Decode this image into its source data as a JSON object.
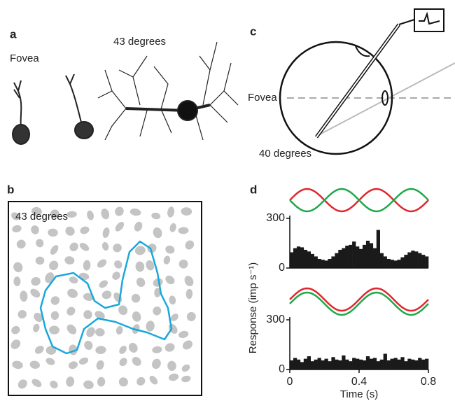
{
  "panels": {
    "a": {
      "label": "a",
      "fovea": "Fovea",
      "periphery": "43 degrees"
    },
    "b": {
      "label": "b",
      "caption": "43 degrees"
    },
    "c": {
      "label": "c",
      "fovea": "Fovea",
      "periphery": "40 degrees"
    },
    "d": {
      "label": "d",
      "ylabel": "Response (imp s⁻¹)",
      "xlabel": "Time (s)"
    }
  },
  "chart_data": [
    {
      "type": "histogram",
      "color": "#1a1a1a",
      "xlim": [
        0,
        0.8
      ],
      "ylim": [
        0,
        300
      ],
      "yticks": [
        0,
        300
      ],
      "bins": [
        0,
        0.02,
        0.04,
        0.06,
        0.08,
        0.1,
        0.12,
        0.14,
        0.16,
        0.18,
        0.2,
        0.22,
        0.24,
        0.26,
        0.28,
        0.3,
        0.32,
        0.34,
        0.36,
        0.38,
        0.4,
        0.42,
        0.44,
        0.46,
        0.48,
        0.5,
        0.52,
        0.54,
        0.56,
        0.58,
        0.6,
        0.62,
        0.64,
        0.66,
        0.68,
        0.7,
        0.72,
        0.74,
        0.76,
        0.78,
        0.8
      ],
      "values": [
        95,
        120,
        130,
        125,
        110,
        100,
        85,
        70,
        55,
        50,
        45,
        55,
        70,
        90,
        110,
        120,
        135,
        140,
        160,
        130,
        115,
        140,
        165,
        150,
        120,
        230,
        90,
        70,
        55,
        50,
        45,
        50,
        65,
        80,
        95,
        105,
        100,
        90,
        80,
        70
      ]
    },
    {
      "type": "histogram",
      "color": "#1a1a1a",
      "xlim": [
        0,
        0.8
      ],
      "ylim": [
        0,
        300
      ],
      "yticks": [
        0,
        300
      ],
      "xticks": [
        0,
        0.4,
        0.8
      ],
      "bins": [
        0,
        0.02,
        0.04,
        0.06,
        0.08,
        0.1,
        0.12,
        0.14,
        0.16,
        0.18,
        0.2,
        0.22,
        0.24,
        0.26,
        0.28,
        0.3,
        0.32,
        0.34,
        0.36,
        0.38,
        0.4,
        0.42,
        0.44,
        0.46,
        0.48,
        0.5,
        0.52,
        0.54,
        0.56,
        0.58,
        0.6,
        0.62,
        0.64,
        0.66,
        0.68,
        0.7,
        0.72,
        0.74,
        0.76,
        0.78,
        0.8
      ],
      "values": [
        55,
        70,
        60,
        45,
        65,
        80,
        50,
        60,
        70,
        55,
        65,
        50,
        75,
        60,
        55,
        85,
        60,
        50,
        70,
        65,
        60,
        55,
        80,
        65,
        70,
        50,
        60,
        95,
        55,
        65,
        70,
        60,
        75,
        50,
        65,
        60,
        55,
        70,
        60,
        65
      ]
    }
  ]
}
